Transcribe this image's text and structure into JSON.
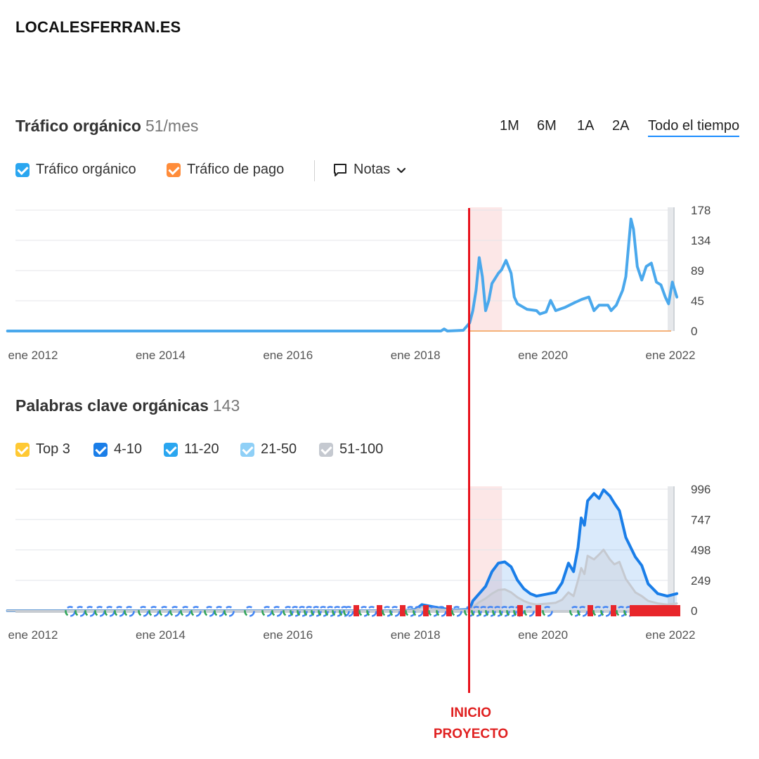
{
  "site": {
    "title": "LOCALESFERRAN.ES"
  },
  "traffic": {
    "title": "Tráfico orgánico",
    "value": "51/mes",
    "ranges": [
      "1M",
      "6M",
      "1A",
      "2A",
      "Todo el tiempo"
    ],
    "active_range": "Todo el tiempo",
    "legend": [
      {
        "label": "Tráfico orgánico",
        "color": "#2aa6f0"
      },
      {
        "label": "Tráfico de pago",
        "color": "#ff8c3a"
      }
    ],
    "notes_label": "Notas"
  },
  "keywords": {
    "title": "Palabras clave orgánicas",
    "value": "143",
    "legend": [
      {
        "label": "Top 3",
        "color": "#ffc933"
      },
      {
        "label": "4-10",
        "color": "#1a7ee8"
      },
      {
        "label": "11-20",
        "color": "#2aa6f0"
      },
      {
        "label": "21-50",
        "color": "#8fd0f7"
      },
      {
        "label": "51-100",
        "color": "#c5c9d0"
      }
    ]
  },
  "annotation": {
    "line1": "INICIO",
    "line2": "PROYECTO",
    "color": "#e8141e",
    "date": 2018.85
  },
  "chart_data": [
    {
      "type": "line",
      "x_tick_labels": [
        "ene 2012",
        "ene 2014",
        "ene 2016",
        "ene 2018",
        "ene 2020",
        "ene 2022"
      ],
      "x_tick_values": [
        2012,
        2014,
        2016,
        2018,
        2020,
        2022
      ],
      "y_tick_labels": [
        "178",
        "134",
        "89",
        "45",
        "0"
      ],
      "ylim": [
        0,
        178
      ],
      "xlim": [
        2011.6,
        2022.1
      ],
      "grid": true,
      "series": [
        {
          "name": "Tráfico orgánico",
          "color": "#4aa8ec",
          "points": [
            [
              2011.6,
              0
            ],
            [
              2016.0,
              0
            ],
            [
              2018.0,
              0
            ],
            [
              2018.4,
              0
            ],
            [
              2018.45,
              3
            ],
            [
              2018.5,
              0
            ],
            [
              2018.75,
              1
            ],
            [
              2018.85,
              12
            ],
            [
              2018.9,
              30
            ],
            [
              2018.95,
              60
            ],
            [
              2019.0,
              108
            ],
            [
              2019.05,
              80
            ],
            [
              2019.1,
              30
            ],
            [
              2019.15,
              45
            ],
            [
              2019.2,
              70
            ],
            [
              2019.3,
              85
            ],
            [
              2019.35,
              90
            ],
            [
              2019.42,
              104
            ],
            [
              2019.5,
              85
            ],
            [
              2019.55,
              50
            ],
            [
              2019.6,
              40
            ],
            [
              2019.75,
              32
            ],
            [
              2019.9,
              30
            ],
            [
              2019.95,
              25
            ],
            [
              2020.05,
              28
            ],
            [
              2020.12,
              45
            ],
            [
              2020.2,
              30
            ],
            [
              2020.35,
              35
            ],
            [
              2020.5,
              42
            ],
            [
              2020.62,
              47
            ],
            [
              2020.72,
              50
            ],
            [
              2020.8,
              30
            ],
            [
              2020.88,
              38
            ],
            [
              2021.02,
              38
            ],
            [
              2021.07,
              30
            ],
            [
              2021.15,
              38
            ],
            [
              2021.25,
              60
            ],
            [
              2021.3,
              80
            ],
            [
              2021.38,
              165
            ],
            [
              2021.42,
              150
            ],
            [
              2021.48,
              95
            ],
            [
              2021.55,
              75
            ],
            [
              2021.62,
              95
            ],
            [
              2021.7,
              100
            ],
            [
              2021.78,
              72
            ],
            [
              2021.85,
              68
            ],
            [
              2021.92,
              50
            ],
            [
              2021.97,
              40
            ],
            [
              2022.03,
              72
            ],
            [
              2022.1,
              50
            ]
          ]
        }
      ]
    },
    {
      "type": "area",
      "x_tick_labels": [
        "ene 2012",
        "ene 2014",
        "ene 2016",
        "ene 2018",
        "ene 2020",
        "ene 2022"
      ],
      "x_tick_values": [
        2012,
        2014,
        2016,
        2018,
        2020,
        2022
      ],
      "y_tick_labels": [
        "996",
        "747",
        "498",
        "249",
        "0"
      ],
      "ylim": [
        0,
        996
      ],
      "xlim": [
        2011.6,
        2022.1
      ],
      "grid": true,
      "series": [
        {
          "name": "4-10",
          "color": "#1a7ee8",
          "points": [
            [
              2011.6,
              0
            ],
            [
              2017.8,
              0
            ],
            [
              2018.0,
              10
            ],
            [
              2018.1,
              50
            ],
            [
              2018.2,
              40
            ],
            [
              2018.4,
              20
            ],
            [
              2018.6,
              5
            ],
            [
              2018.85,
              10
            ],
            [
              2018.9,
              80
            ],
            [
              2019.0,
              140
            ],
            [
              2019.1,
              200
            ],
            [
              2019.2,
              320
            ],
            [
              2019.3,
              390
            ],
            [
              2019.4,
              400
            ],
            [
              2019.5,
              360
            ],
            [
              2019.6,
              250
            ],
            [
              2019.7,
              180
            ],
            [
              2019.8,
              140
            ],
            [
              2019.9,
              120
            ],
            [
              2020.0,
              130
            ],
            [
              2020.1,
              140
            ],
            [
              2020.2,
              150
            ],
            [
              2020.3,
              230
            ],
            [
              2020.4,
              390
            ],
            [
              2020.48,
              320
            ],
            [
              2020.55,
              520
            ],
            [
              2020.6,
              760
            ],
            [
              2020.65,
              700
            ],
            [
              2020.7,
              900
            ],
            [
              2020.8,
              960
            ],
            [
              2020.88,
              920
            ],
            [
              2020.95,
              990
            ],
            [
              2021.05,
              940
            ],
            [
              2021.12,
              880
            ],
            [
              2021.2,
              820
            ],
            [
              2021.3,
              600
            ],
            [
              2021.45,
              440
            ],
            [
              2021.55,
              370
            ],
            [
              2021.65,
              220
            ],
            [
              2021.8,
              140
            ],
            [
              2021.95,
              120
            ],
            [
              2022.1,
              140
            ]
          ]
        },
        {
          "name": "51-100",
          "color": "#c5c9d0",
          "points": [
            [
              2011.6,
              0
            ],
            [
              2017.8,
              0
            ],
            [
              2018.0,
              5
            ],
            [
              2018.1,
              30
            ],
            [
              2018.2,
              20
            ],
            [
              2018.4,
              10
            ],
            [
              2018.6,
              3
            ],
            [
              2018.85,
              5
            ],
            [
              2018.9,
              30
            ],
            [
              2019.0,
              70
            ],
            [
              2019.1,
              100
            ],
            [
              2019.2,
              140
            ],
            [
              2019.3,
              170
            ],
            [
              2019.4,
              175
            ],
            [
              2019.5,
              150
            ],
            [
              2019.6,
              110
            ],
            [
              2019.7,
              80
            ],
            [
              2019.8,
              60
            ],
            [
              2019.9,
              50
            ],
            [
              2020.0,
              55
            ],
            [
              2020.1,
              60
            ],
            [
              2020.2,
              65
            ],
            [
              2020.3,
              90
            ],
            [
              2020.4,
              150
            ],
            [
              2020.48,
              120
            ],
            [
              2020.55,
              250
            ],
            [
              2020.6,
              350
            ],
            [
              2020.65,
              300
            ],
            [
              2020.7,
              450
            ],
            [
              2020.8,
              420
            ],
            [
              2020.88,
              460
            ],
            [
              2020.95,
              500
            ],
            [
              2021.05,
              420
            ],
            [
              2021.12,
              380
            ],
            [
              2021.2,
              400
            ],
            [
              2021.3,
              260
            ],
            [
              2021.45,
              150
            ],
            [
              2021.55,
              120
            ],
            [
              2021.65,
              80
            ],
            [
              2021.8,
              60
            ],
            [
              2021.95,
              50
            ],
            [
              2022.1,
              60
            ]
          ]
        }
      ]
    }
  ]
}
